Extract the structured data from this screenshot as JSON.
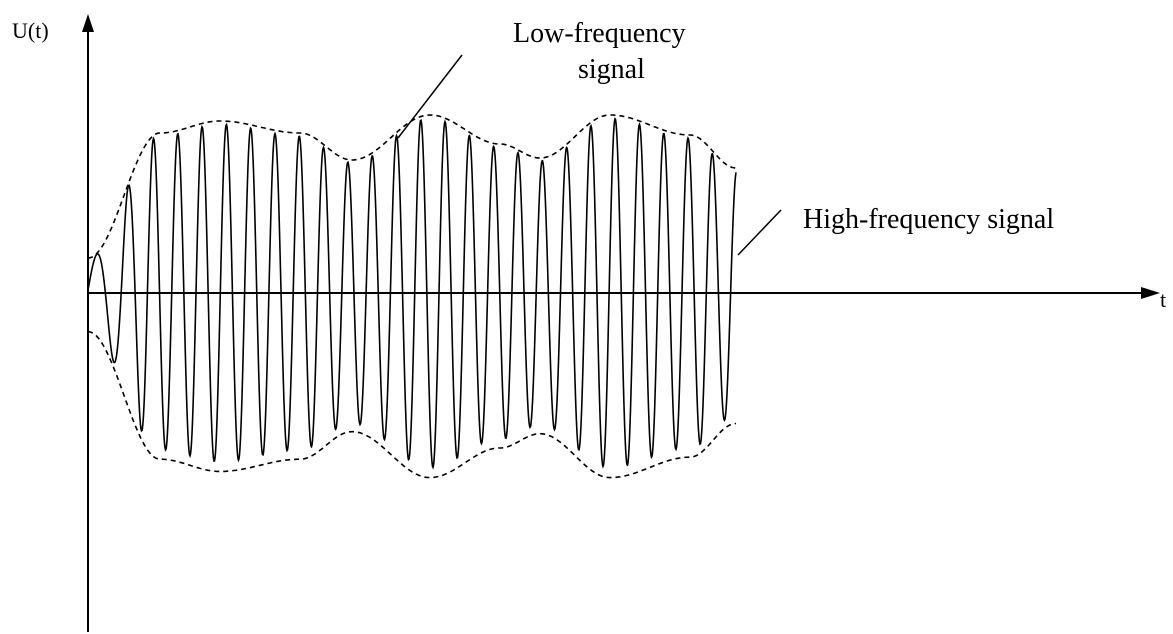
{
  "axes": {
    "y_label": "U(t)",
    "x_label": "t"
  },
  "annotations": {
    "low_frequency_line1": "Low-frequency",
    "low_frequency_line2": "signal",
    "high_frequency": "High-frequency signal"
  },
  "colors": {
    "ink": "#000000",
    "background": "#ffffff"
  }
}
